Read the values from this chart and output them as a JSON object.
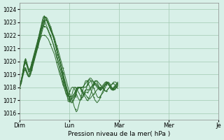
{
  "bg_color": "#d8f0e8",
  "grid_color": "#a0c8b0",
  "line_color": "#2d6b2d",
  "ylabel_range": [
    1015.5,
    1024.5
  ],
  "yticks": [
    1016,
    1017,
    1018,
    1019,
    1020,
    1021,
    1022,
    1023,
    1024
  ],
  "xlabel": "Pression niveau de la mer( hPa )",
  "xtick_labels": [
    "Dim",
    "Lun",
    "Mar",
    "Mer",
    "Je"
  ],
  "xtick_positions": [
    0,
    48,
    96,
    144,
    192
  ],
  "series": [
    [
      1018.0,
      1018.2,
      1018.5,
      1019.0,
      1019.5,
      1020.0,
      1020.1,
      1019.8,
      1019.5,
      1019.2,
      1019.0,
      1019.2,
      1019.5,
      1019.8,
      1020.1,
      1020.4,
      1020.7,
      1021.0,
      1021.3,
      1021.6,
      1022.0,
      1022.4,
      1022.7,
      1023.0,
      1023.2,
      1023.4,
      1023.4,
      1023.3,
      1023.1,
      1022.9,
      1022.7,
      1022.5,
      1022.2,
      1022.0,
      1021.8,
      1021.5,
      1021.2,
      1021.0,
      1020.7,
      1020.4,
      1020.1,
      1019.8,
      1019.5,
      1019.2,
      1018.9,
      1018.6,
      1018.3,
      1018.0,
      1017.7,
      1017.4,
      1017.2,
      1017.0,
      1016.8,
      1016.5,
      1016.3,
      1016.1,
      1016.2,
      1016.5,
      1016.8,
      1017.1,
      1017.4,
      1017.7,
      1018.0,
      1018.3,
      1018.5,
      1018.5,
      1018.4,
      1018.2,
      1018.0,
      1017.8,
      1017.6,
      1017.4,
      1017.2,
      1017.0,
      1016.9,
      1016.8,
      1016.9,
      1017.0,
      1017.2,
      1017.4,
      1017.6,
      1017.8,
      1018.0,
      1018.2,
      1018.3,
      1018.3,
      1018.2,
      1018.1,
      1018.0,
      1017.9,
      1017.8,
      1017.8,
      1017.9,
      1018.0,
      1018.1,
      1018.2
    ],
    [
      1018.0,
      1018.3,
      1018.6,
      1019.0,
      1019.5,
      1020.0,
      1020.2,
      1020.0,
      1019.7,
      1019.4,
      1019.3,
      1019.5,
      1019.8,
      1020.1,
      1020.4,
      1020.7,
      1021.0,
      1021.3,
      1021.6,
      1021.9,
      1022.2,
      1022.6,
      1022.9,
      1023.2,
      1023.4,
      1023.4,
      1023.3,
      1023.1,
      1022.9,
      1022.7,
      1022.5,
      1022.3,
      1022.1,
      1021.9,
      1021.6,
      1021.3,
      1021.0,
      1020.7,
      1020.4,
      1020.1,
      1019.8,
      1019.4,
      1019.1,
      1018.7,
      1018.4,
      1018.1,
      1017.8,
      1017.5,
      1017.2,
      1017.0,
      1016.8,
      1016.8,
      1016.9,
      1017.1,
      1017.3,
      1017.6,
      1017.9,
      1018.0,
      1018.0,
      1017.9,
      1017.7,
      1017.5,
      1017.4,
      1017.5,
      1017.7,
      1018.0,
      1018.3,
      1018.5,
      1018.6,
      1018.5,
      1018.3,
      1018.1,
      1017.9,
      1017.7,
      1017.5,
      1017.3,
      1017.2,
      1017.2,
      1017.3,
      1017.4,
      1017.5,
      1017.6,
      1017.8,
      1018.0,
      1018.2,
      1018.3,
      1018.4,
      1018.3,
      1018.2,
      1018.0,
      1017.9,
      1017.8,
      1017.8,
      1017.9,
      1018.0,
      1018.1,
      1018.3
    ],
    [
      1018.0,
      1018.2,
      1018.5,
      1018.9,
      1019.3,
      1019.7,
      1019.9,
      1019.8,
      1019.5,
      1019.2,
      1019.2,
      1019.4,
      1019.7,
      1020.0,
      1020.3,
      1020.6,
      1020.9,
      1021.2,
      1021.6,
      1022.0,
      1022.4,
      1022.7,
      1023.1,
      1023.4,
      1023.5,
      1023.4,
      1023.2,
      1023.0,
      1022.8,
      1022.6,
      1022.4,
      1022.2,
      1022.0,
      1021.8,
      1021.5,
      1021.2,
      1020.9,
      1020.6,
      1020.3,
      1020.0,
      1019.7,
      1019.3,
      1019.0,
      1018.6,
      1018.3,
      1018.0,
      1017.7,
      1017.4,
      1017.1,
      1016.9,
      1016.9,
      1016.9,
      1017.0,
      1017.2,
      1017.4,
      1017.6,
      1017.8,
      1018.0,
      1018.0,
      1017.9,
      1017.8,
      1017.6,
      1017.5,
      1017.3,
      1017.2,
      1017.0,
      1017.0,
      1017.1,
      1017.3,
      1017.5,
      1017.8,
      1018.0,
      1018.3,
      1018.5,
      1018.5,
      1018.4,
      1018.2,
      1018.0,
      1017.8,
      1017.8,
      1017.9,
      1018.0,
      1018.1,
      1018.2,
      1018.3,
      1018.3,
      1018.2,
      1018.1,
      1017.9,
      1017.8,
      1017.8,
      1017.9,
      1018.0,
      1018.1,
      1018.2,
      1018.3,
      1018.4
    ],
    [
      1018.1,
      1018.3,
      1018.6,
      1019.0,
      1019.4,
      1019.8,
      1020.0,
      1019.8,
      1019.6,
      1019.4,
      1019.4,
      1019.6,
      1019.9,
      1020.2,
      1020.5,
      1020.8,
      1021.1,
      1021.4,
      1021.7,
      1022.0,
      1022.3,
      1022.6,
      1022.9,
      1023.1,
      1023.1,
      1023.0,
      1022.8,
      1022.6,
      1022.4,
      1022.2,
      1022.0,
      1021.8,
      1021.5,
      1021.2,
      1020.9,
      1020.6,
      1020.3,
      1020.0,
      1019.7,
      1019.3,
      1019.0,
      1018.7,
      1018.4,
      1018.1,
      1017.8,
      1017.5,
      1017.4,
      1017.4,
      1017.5,
      1017.7,
      1017.9,
      1018.0,
      1018.0,
      1017.9,
      1017.7,
      1017.5,
      1017.3,
      1017.1,
      1017.0,
      1017.0,
      1017.1,
      1017.3,
      1017.5,
      1017.7,
      1017.8,
      1017.8,
      1017.8,
      1017.8,
      1017.9,
      1018.0,
      1018.1,
      1018.2,
      1018.3,
      1018.4,
      1018.5,
      1018.5,
      1018.4,
      1018.3,
      1018.2,
      1018.1,
      1018.0,
      1017.9,
      1017.8,
      1017.7,
      1017.7,
      1017.8,
      1017.9,
      1018.0,
      1018.1,
      1018.2,
      1018.3,
      1018.4,
      1018.4,
      1018.4,
      1018.3,
      1018.2,
      1018.1,
      1018.0
    ],
    [
      1018.0,
      1018.2,
      1018.5,
      1018.8,
      1019.1,
      1019.4,
      1019.4,
      1019.2,
      1019.0,
      1018.8,
      1018.8,
      1019.0,
      1019.3,
      1019.6,
      1019.9,
      1020.2,
      1020.5,
      1020.8,
      1021.1,
      1021.4,
      1021.7,
      1022.0,
      1022.3,
      1022.6,
      1022.9,
      1023.1,
      1023.2,
      1023.1,
      1022.9,
      1022.7,
      1022.5,
      1022.3,
      1022.1,
      1021.8,
      1021.5,
      1021.2,
      1020.9,
      1020.6,
      1020.3,
      1020.0,
      1019.6,
      1019.2,
      1018.8,
      1018.4,
      1018.1,
      1017.8,
      1017.6,
      1016.9,
      1016.9,
      1017.0,
      1017.2,
      1017.5,
      1017.8,
      1018.0,
      1018.0,
      1017.9,
      1017.8,
      1017.6,
      1017.5,
      1017.3,
      1017.2,
      1017.2,
      1017.3,
      1017.5,
      1017.6,
      1017.6,
      1017.6,
      1017.7,
      1017.8,
      1017.9,
      1018.0,
      1018.1,
      1018.2,
      1018.3,
      1018.3,
      1018.2,
      1018.1,
      1017.9,
      1017.8,
      1017.8,
      1017.9,
      1018.0,
      1018.1,
      1018.2,
      1018.3,
      1018.3,
      1018.2,
      1018.1,
      1017.9,
      1017.8,
      1017.8,
      1017.9,
      1018.0,
      1018.1,
      1018.2,
      1018.3,
      1018.4,
      1018.4
    ],
    [
      1017.9,
      1018.1,
      1018.4,
      1018.8,
      1019.2,
      1019.5,
      1019.5,
      1019.3,
      1019.1,
      1018.9,
      1019.0,
      1019.2,
      1019.5,
      1019.8,
      1020.1,
      1020.4,
      1020.7,
      1021.0,
      1021.3,
      1021.6,
      1021.9,
      1022.2,
      1022.5,
      1022.8,
      1023.1,
      1023.2,
      1023.2,
      1023.1,
      1022.9,
      1022.7,
      1022.5,
      1022.3,
      1022.1,
      1021.8,
      1021.5,
      1021.2,
      1020.9,
      1020.6,
      1020.3,
      1020.0,
      1019.7,
      1019.4,
      1019.1,
      1018.8,
      1018.5,
      1018.2,
      1017.9,
      1017.6,
      1017.3,
      1017.1,
      1017.1,
      1017.2,
      1017.3,
      1017.5,
      1017.7,
      1017.9,
      1018.0,
      1018.0,
      1018.0,
      1017.9,
      1017.8,
      1017.7,
      1017.6,
      1017.5,
      1017.4,
      1017.3,
      1017.2,
      1017.1,
      1017.1,
      1017.2,
      1017.3,
      1017.4,
      1017.5,
      1017.6,
      1017.7,
      1017.8,
      1017.9,
      1018.0,
      1018.0,
      1018.0,
      1018.0,
      1017.9,
      1017.8,
      1017.7,
      1017.7,
      1017.8,
      1017.9,
      1018.0,
      1018.1,
      1018.2,
      1018.3,
      1018.3,
      1018.2,
      1018.1,
      1018.0,
      1017.9,
      1017.8,
      1017.8
    ],
    [
      1018.0,
      1018.2,
      1018.5,
      1018.9,
      1019.3,
      1019.7,
      1019.9,
      1019.7,
      1019.5,
      1019.3,
      1019.2,
      1019.4,
      1019.7,
      1020.0,
      1020.3,
      1020.6,
      1020.9,
      1021.2,
      1021.5,
      1021.8,
      1022.1,
      1022.4,
      1022.6,
      1022.7,
      1022.7,
      1022.7,
      1022.6,
      1022.5,
      1022.3,
      1022.1,
      1021.9,
      1021.7,
      1021.5,
      1021.3,
      1021.0,
      1020.8,
      1020.5,
      1020.2,
      1019.9,
      1019.6,
      1019.3,
      1019.0,
      1018.7,
      1018.4,
      1018.1,
      1017.8,
      1017.5,
      1017.3,
      1017.3,
      1017.3,
      1017.3,
      1017.3,
      1017.4,
      1017.5,
      1017.6,
      1017.7,
      1017.8,
      1017.9,
      1018.0,
      1018.0,
      1018.0,
      1018.0,
      1018.0,
      1018.0,
      1018.0,
      1018.1,
      1018.2,
      1018.3,
      1018.4,
      1018.5,
      1018.5,
      1018.4,
      1018.3,
      1018.2,
      1018.1,
      1018.0,
      1017.9,
      1017.8,
      1017.8,
      1017.9,
      1018.0,
      1018.1,
      1018.2,
      1018.3,
      1018.4,
      1018.4,
      1018.3,
      1018.2,
      1018.1,
      1018.0,
      1017.9,
      1017.8,
      1017.8,
      1017.9,
      1018.0,
      1018.1,
      1018.2,
      1018.3
    ],
    [
      1017.9,
      1018.1,
      1018.3,
      1018.7,
      1019.0,
      1019.3,
      1019.3,
      1019.1,
      1018.9,
      1018.8,
      1018.9,
      1019.1,
      1019.4,
      1019.7,
      1020.0,
      1020.3,
      1020.6,
      1020.9,
      1021.2,
      1021.5,
      1021.7,
      1021.9,
      1022.0,
      1022.0,
      1022.0,
      1022.0,
      1021.9,
      1021.8,
      1021.7,
      1021.5,
      1021.3,
      1021.1,
      1020.9,
      1020.7,
      1020.5,
      1020.2,
      1019.9,
      1019.6,
      1019.3,
      1019.0,
      1018.8,
      1018.5,
      1018.2,
      1018.0,
      1017.8,
      1017.5,
      1017.3,
      1017.1,
      1017.0,
      1017.0,
      1017.0,
      1017.1,
      1017.2,
      1017.3,
      1017.5,
      1017.7,
      1017.9,
      1018.0,
      1018.0,
      1018.0,
      1018.0,
      1018.0,
      1018.1,
      1018.2,
      1018.3,
      1018.4,
      1018.5,
      1018.6,
      1018.7,
      1018.7,
      1018.6,
      1018.5,
      1018.4,
      1018.3,
      1018.2,
      1018.1,
      1018.0,
      1017.9,
      1017.9,
      1018.0,
      1018.1,
      1018.2,
      1018.3,
      1018.4,
      1018.4,
      1018.3,
      1018.2,
      1018.1,
      1018.0,
      1017.9,
      1017.9,
      1018.0,
      1018.1,
      1018.2,
      1018.3,
      1018.4,
      1018.5,
      1018.5
    ]
  ]
}
